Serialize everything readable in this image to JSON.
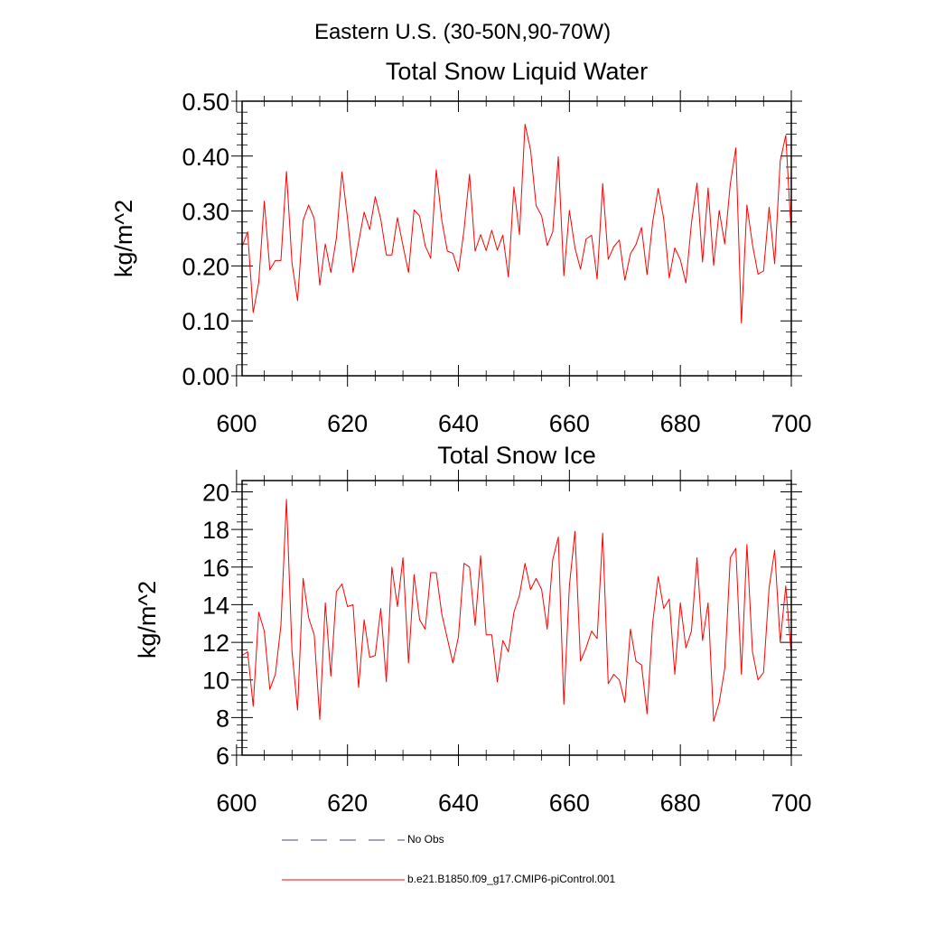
{
  "figure": {
    "suptitle": "Eastern U.S. (30-50N,90-70W)"
  },
  "chart_data": [
    {
      "type": "line",
      "title": "Total Snow Liquid Water",
      "xlabel": "",
      "ylabel": "kg/m^2",
      "xlim": [
        601,
        700
      ],
      "ylim": [
        0.0,
        0.5
      ],
      "xticks": [
        600,
        620,
        640,
        660,
        680,
        700
      ],
      "yticks": [
        0.0,
        0.1,
        0.2,
        0.3,
        0.4,
        0.5
      ],
      "ytick_labels": [
        "0.00",
        "0.10",
        "0.20",
        "0.30",
        "0.40",
        "0.50"
      ],
      "x_start": 601,
      "series": [
        {
          "name": "b.e21.B1850.f09_g17.CMIP6-piControl.001",
          "color": "#ff0000",
          "values": [
            0.235,
            0.262,
            0.115,
            0.17,
            0.318,
            0.193,
            0.21,
            0.21,
            0.372,
            0.205,
            0.137,
            0.283,
            0.311,
            0.286,
            0.165,
            0.24,
            0.188,
            0.251,
            0.371,
            0.287,
            0.188,
            0.243,
            0.298,
            0.266,
            0.326,
            0.285,
            0.22,
            0.22,
            0.288,
            0.237,
            0.188,
            0.302,
            0.291,
            0.237,
            0.214,
            0.375,
            0.283,
            0.227,
            0.223,
            0.19,
            0.265,
            0.367,
            0.227,
            0.257,
            0.228,
            0.265,
            0.229,
            0.256,
            0.18,
            0.344,
            0.257,
            0.458,
            0.411,
            0.31,
            0.291,
            0.237,
            0.262,
            0.399,
            0.182,
            0.301,
            0.233,
            0.194,
            0.249,
            0.256,
            0.176,
            0.35,
            0.212,
            0.235,
            0.247,
            0.174,
            0.222,
            0.239,
            0.27,
            0.184,
            0.279,
            0.341,
            0.286,
            0.178,
            0.233,
            0.211,
            0.169,
            0.278,
            0.351,
            0.207,
            0.342,
            0.201,
            0.301,
            0.24,
            0.349,
            0.415,
            0.096,
            0.311,
            0.239,
            0.185,
            0.191,
            0.307,
            0.204,
            0.391,
            0.438,
            0.256
          ]
        }
      ]
    },
    {
      "type": "line",
      "title": "Total Snow Ice",
      "xlabel": "",
      "ylabel": "kg/m^2",
      "xlim": [
        601,
        700
      ],
      "ylim": [
        6,
        20.6
      ],
      "xticks": [
        600,
        620,
        640,
        660,
        680,
        700
      ],
      "yticks": [
        6,
        8,
        10,
        12,
        14,
        16,
        18,
        20
      ],
      "ytick_labels": [
        "6",
        "8",
        "10",
        "12",
        "14",
        "16",
        "18",
        "20"
      ],
      "x_start": 601,
      "series": [
        {
          "name": "b.e21.B1850.f09_g17.CMIP6-piControl.001",
          "color": "#ff0000",
          "values": [
            11.3,
            11.5,
            8.6,
            13.6,
            12.6,
            9.5,
            10.3,
            12.9,
            19.6,
            11.5,
            8.4,
            15.4,
            13.3,
            12.4,
            7.9,
            14.1,
            10.2,
            14.7,
            15.1,
            13.9,
            14.0,
            9.6,
            13.2,
            11.2,
            11.3,
            13.8,
            9.9,
            16.0,
            13.9,
            16.5,
            10.9,
            15.6,
            13.2,
            12.7,
            15.7,
            15.7,
            13.5,
            12.2,
            10.9,
            12.3,
            16.2,
            16.0,
            12.9,
            16.6,
            12.4,
            12.4,
            9.9,
            12.1,
            11.5,
            13.6,
            14.5,
            16.2,
            14.8,
            15.4,
            14.8,
            12.7,
            16.4,
            17.6,
            8.7,
            15.0,
            17.9,
            11.0,
            11.7,
            12.6,
            12.2,
            17.8,
            9.8,
            10.3,
            10.0,
            8.8,
            12.7,
            11.0,
            10.8,
            8.2,
            13.0,
            15.5,
            13.8,
            14.3,
            10.3,
            14.1,
            11.7,
            12.6,
            16.5,
            12.1,
            14.1,
            7.8,
            8.8,
            10.6,
            16.5,
            17.0,
            10.3,
            17.2,
            11.5,
            10.0,
            10.4,
            14.9,
            16.9,
            12.0,
            15.0,
            11.3
          ]
        }
      ]
    }
  ],
  "legend": {
    "position": "bottom",
    "entries": [
      {
        "label": "No Obs",
        "color": "#4a4a7a",
        "style": "dashed"
      },
      {
        "label": "b.e21.B1850.f09_g17.CMIP6-piControl.001",
        "color": "#ff0000",
        "style": "solid"
      }
    ]
  }
}
